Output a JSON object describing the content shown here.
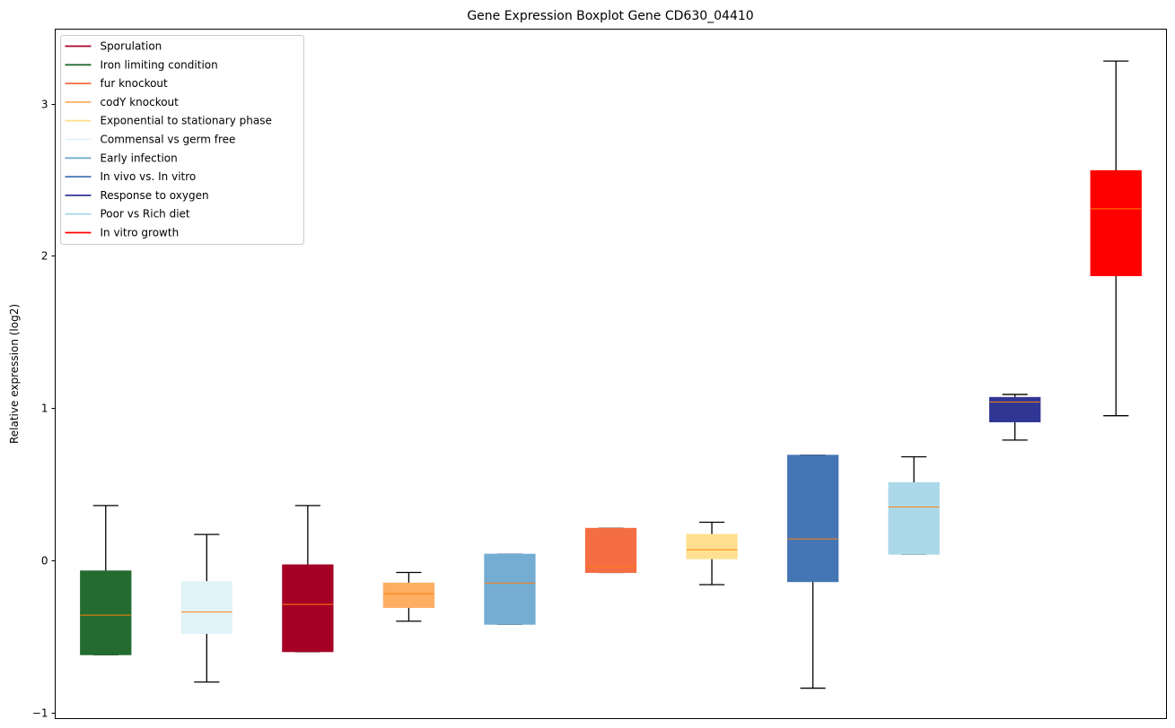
{
  "chart_data": {
    "type": "boxplot",
    "title": "Gene Expression Boxplot Gene CD630_04410",
    "xlabel": "",
    "ylabel": "Relative expression (log2)",
    "ylim": [
      -1.04,
      3.49
    ],
    "yticks": [
      -1,
      0,
      1,
      2,
      3
    ],
    "ytick_labels": [
      "−1",
      "0",
      "1",
      "2",
      "3"
    ],
    "grid": false,
    "legend_position": "top-left",
    "legend": [
      {
        "label": "Sporulation",
        "color": "#a50026"
      },
      {
        "label": "Iron limiting condition",
        "color": "#236b2e"
      },
      {
        "label": "fur knockout",
        "color": "#f46d43"
      },
      {
        "label": "codY knockout",
        "color": "#fdae61"
      },
      {
        "label": "Exponential to stationary phase",
        "color": "#fee090"
      },
      {
        "label": "Commensal vs germ free",
        "color": "#e0f3f8"
      },
      {
        "label": "Early infection",
        "color": "#74add1"
      },
      {
        "label": "In vivo vs. In vitro",
        "color": "#4575b4"
      },
      {
        "label": "Response to oxygen",
        "color": "#313695"
      },
      {
        "label": "Poor vs Rich diet",
        "color": "#abd9e9"
      },
      {
        "label": "In vitro growth",
        "color": "#ff0000"
      }
    ],
    "median_color": "#ff7f0e",
    "boxes": [
      {
        "group": "Iron limiting condition",
        "color": "#236b2e",
        "whisker_low": -0.62,
        "q1": -0.62,
        "median": -0.36,
        "q3": -0.07,
        "whisker_high": 0.36
      },
      {
        "group": "Commensal vs germ free",
        "color": "#e0f3f8",
        "whisker_low": -0.8,
        "q1": -0.48,
        "median": -0.34,
        "q3": -0.14,
        "whisker_high": 0.17
      },
      {
        "group": "Sporulation",
        "color": "#a50026",
        "whisker_low": -0.6,
        "q1": -0.6,
        "median": -0.29,
        "q3": -0.03,
        "whisker_high": 0.36
      },
      {
        "group": "codY knockout",
        "color": "#fdae61",
        "whisker_low": -0.4,
        "q1": -0.31,
        "median": -0.22,
        "q3": -0.15,
        "whisker_high": -0.08
      },
      {
        "group": "Early infection",
        "color": "#74add1",
        "whisker_low": -0.42,
        "q1": -0.42,
        "median": -0.15,
        "q3": 0.04,
        "whisker_high": 0.04
      },
      {
        "group": "fur knockout",
        "color": "#f46d43",
        "whisker_low": -0.08,
        "q1": -0.08,
        "median": -0.04,
        "q3": 0.21,
        "whisker_high": 0.21
      },
      {
        "group": "Exponential to stationary phase",
        "color": "#fee090",
        "whisker_low": -0.16,
        "q1": 0.01,
        "median": 0.07,
        "q3": 0.17,
        "whisker_high": 0.25
      },
      {
        "group": "In vivo vs. In vitro",
        "color": "#4575b4",
        "whisker_low": -0.84,
        "q1": -0.14,
        "median": 0.14,
        "q3": 0.69,
        "whisker_high": 0.69
      },
      {
        "group": "Poor vs Rich diet",
        "color": "#abd9e9",
        "whisker_low": 0.04,
        "q1": 0.04,
        "median": 0.35,
        "q3": 0.51,
        "whisker_high": 0.68
      },
      {
        "group": "Response to oxygen",
        "color": "#313695",
        "whisker_low": 0.79,
        "q1": 0.91,
        "median": 1.04,
        "q3": 1.07,
        "whisker_high": 1.09
      },
      {
        "group": "In vitro growth",
        "color": "#ff0000",
        "whisker_low": 0.95,
        "q1": 1.87,
        "median": 2.31,
        "q3": 2.56,
        "whisker_high": 3.28
      }
    ]
  }
}
